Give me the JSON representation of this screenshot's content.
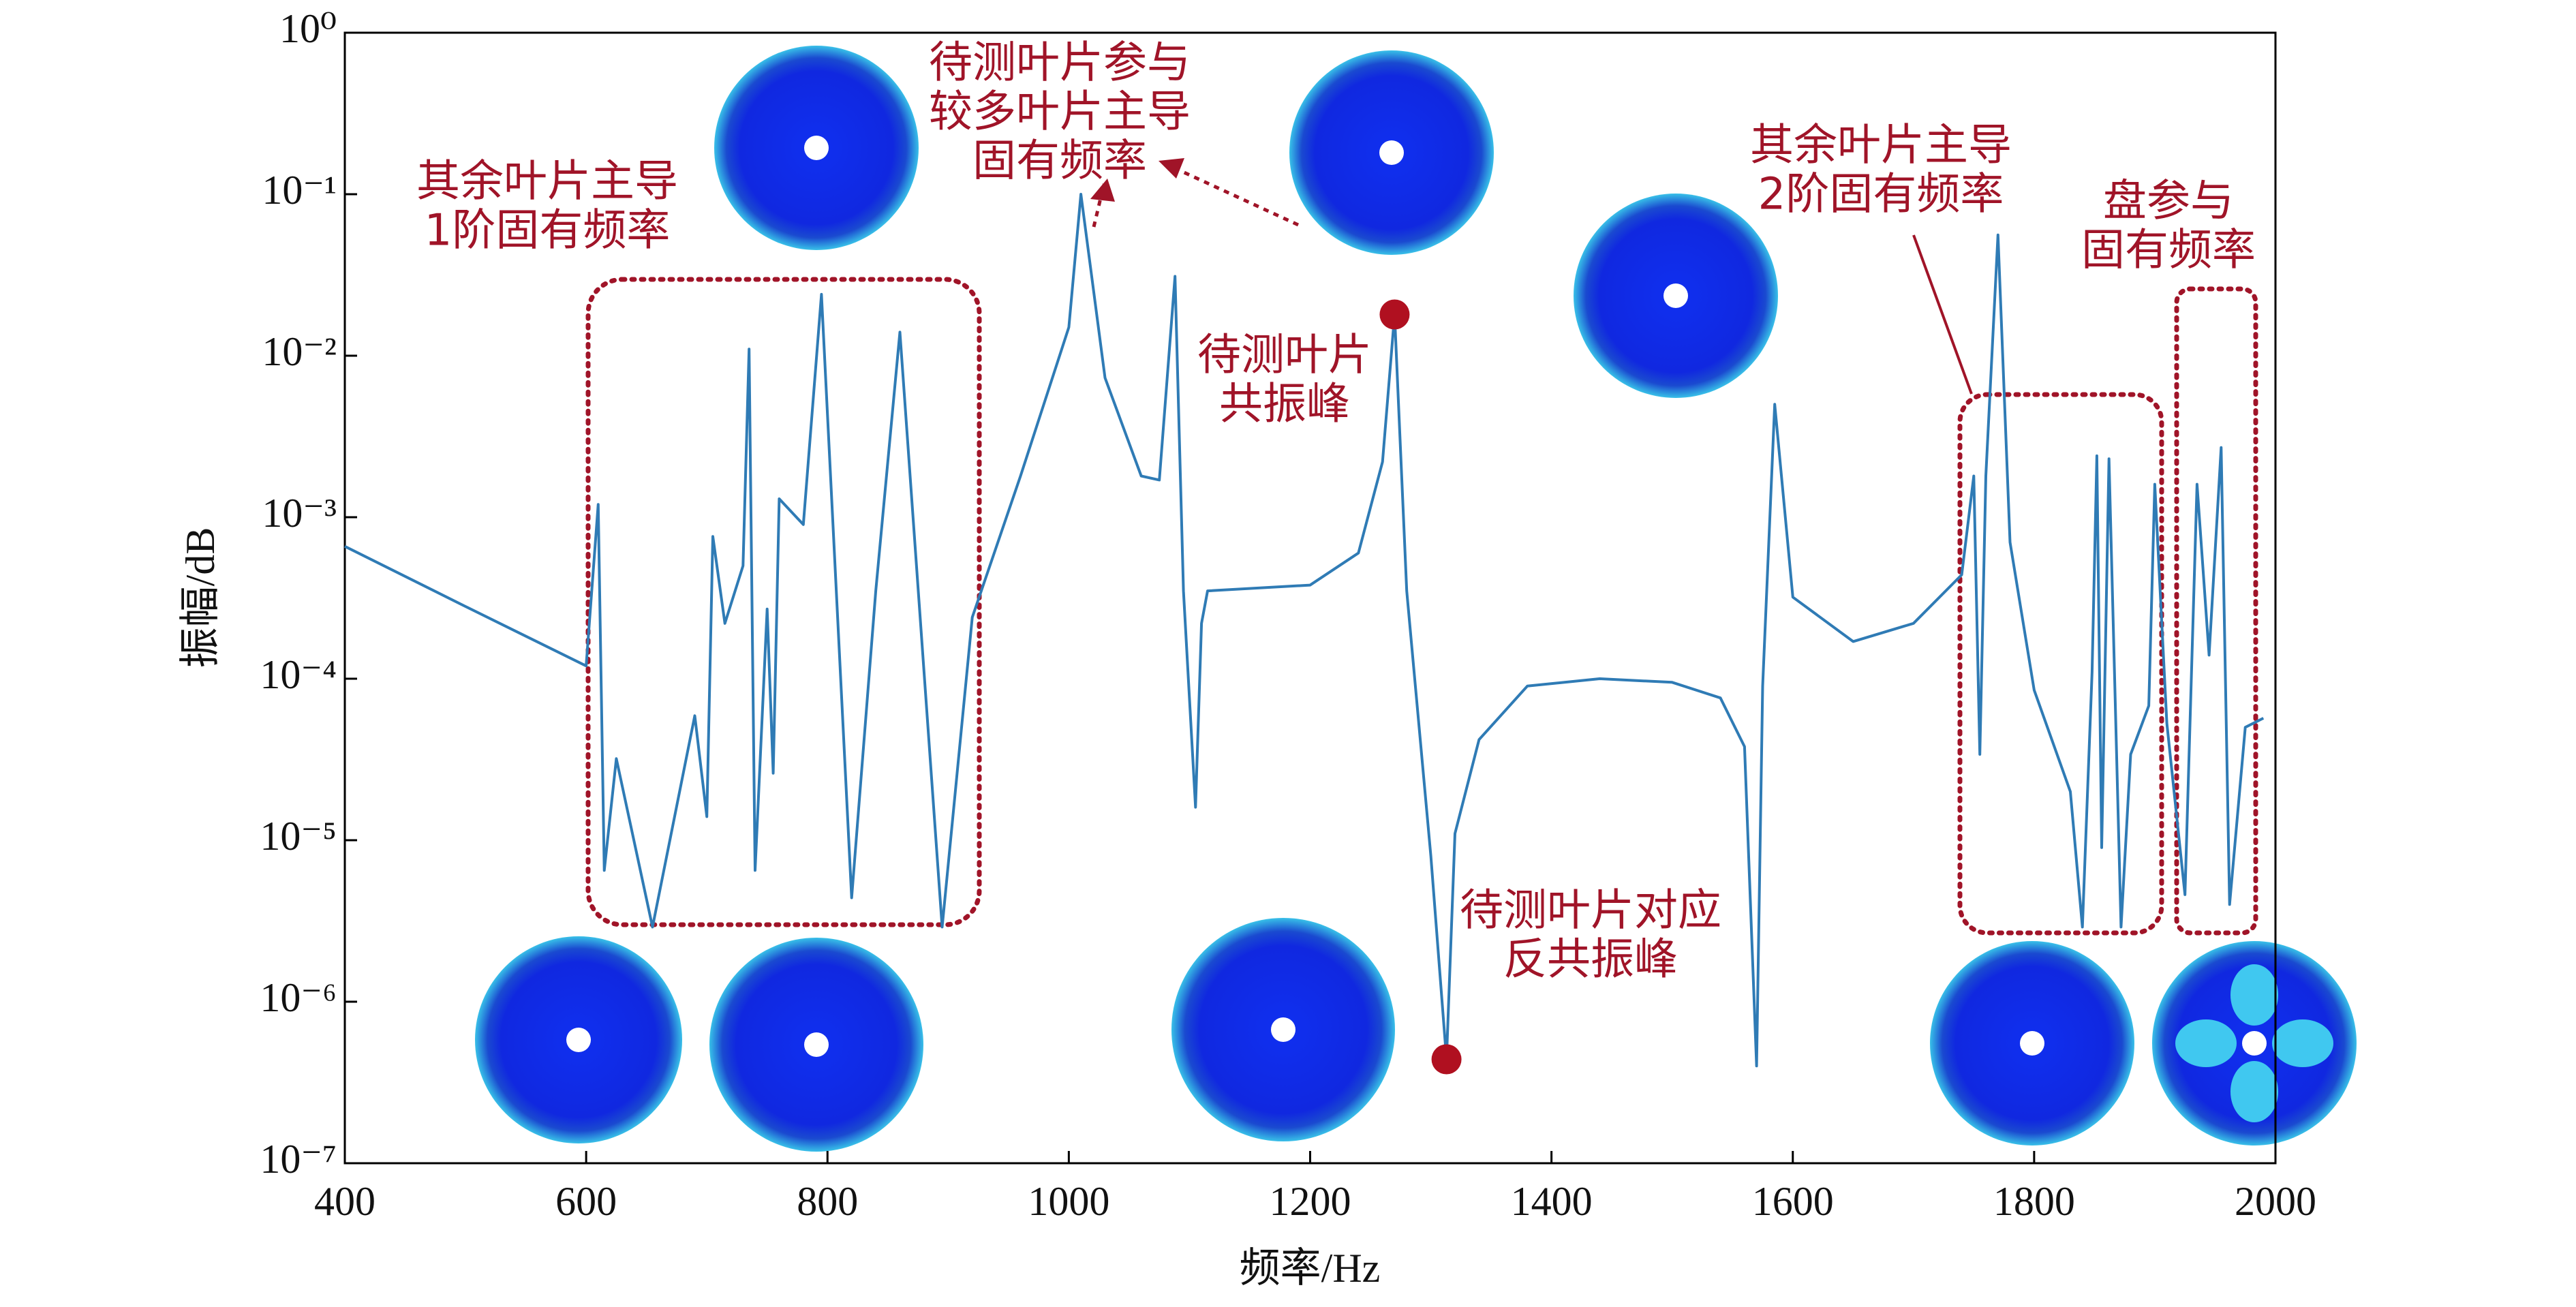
{
  "chart_data": {
    "type": "line",
    "xlabel": "频率/Hz",
    "ylabel": "振幅/dB",
    "ylog": true,
    "grid": false,
    "color": "#2f7bb5",
    "xlim": [
      400,
      2000
    ],
    "ylim": [
      1e-07,
      1
    ],
    "xticks": [
      400,
      600,
      800,
      1000,
      1200,
      1400,
      1600,
      1800,
      2000
    ],
    "yticks": [
      {
        "value": 1,
        "label": "10⁰"
      },
      {
        "value": 0.1,
        "label": "10⁻¹"
      },
      {
        "value": 0.01,
        "label": "10⁻²"
      },
      {
        "value": 0.001,
        "label": "10⁻³"
      },
      {
        "value": 0.0001,
        "label": "10⁻⁴"
      },
      {
        "value": 1e-05,
        "label": "10⁻⁵"
      },
      {
        "value": 1e-06,
        "label": "10⁻⁶"
      },
      {
        "value": 1e-07,
        "label": "10⁻⁷"
      }
    ],
    "x": [
      400,
      500,
      600,
      610,
      615,
      625,
      655,
      690,
      700,
      705,
      715,
      730,
      735,
      740,
      750,
      755,
      760,
      780,
      795,
      820,
      840,
      860,
      895,
      920,
      960,
      1000,
      1010,
      1030,
      1060,
      1075,
      1088,
      1095,
      1105,
      1110,
      1115,
      1200,
      1240,
      1260,
      1270,
      1280,
      1300,
      1313,
      1320,
      1340,
      1380,
      1440,
      1500,
      1540,
      1560,
      1570,
      1575,
      1585,
      1600,
      1650,
      1700,
      1740,
      1750,
      1755,
      1760,
      1770,
      1780,
      1800,
      1830,
      1840,
      1848,
      1852,
      1856,
      1862,
      1872,
      1880,
      1895,
      1900,
      1910,
      1925,
      1935,
      1945,
      1955,
      1962,
      1975,
      1990
    ],
    "values": [
      0.00066,
      0.00028,
      0.00012,
      0.0012,
      6.5e-06,
      3.2e-05,
      2.9e-06,
      5.9e-05,
      1.4e-05,
      0.00076,
      0.00022,
      0.0005,
      0.011,
      6.5e-06,
      0.00027,
      2.6e-05,
      0.0013,
      0.0009,
      0.024,
      4.4e-06,
      0.00035,
      0.014,
      2.9e-06,
      0.00024,
      0.0018,
      0.015,
      0.1,
      0.0073,
      0.0018,
      0.0017,
      0.031,
      0.00035,
      1.6e-05,
      0.00022,
      0.00035,
      0.00038,
      0.0006,
      0.0022,
      0.018,
      0.00035,
      8e-06,
      4.4e-07,
      1.1e-05,
      4.2e-05,
      9e-05,
      0.0001,
      9.5e-05,
      7.6e-05,
      3.8e-05,
      4e-07,
      9e-05,
      0.005,
      0.00032,
      0.00017,
      0.00022,
      0.00044,
      0.0018,
      3.4e-05,
      0.0018,
      0.056,
      0.0007,
      8.5e-05,
      2e-05,
      2.9e-06,
      0.00011,
      0.0024,
      9e-06,
      0.0023,
      2.9e-06,
      3.4e-05,
      6.8e-05,
      0.0016,
      5.3e-05,
      4.6e-06,
      0.0016,
      0.00014,
      0.0027,
      4e-06,
      5e-05,
      5.7e-05
    ],
    "markers": [
      {
        "x": 1270,
        "y": 0.018
      },
      {
        "x": 1313,
        "y": 4.4e-07
      }
    ],
    "marker_color": "#b01020",
    "annotation_color": "#a01428",
    "annotations": [
      {
        "lines": [
          "其余叶片主导",
          "1阶固有频率"
        ]
      },
      {
        "lines": [
          "待测叶片参与",
          "较多叶片主导",
          "固有频率"
        ]
      },
      {
        "lines": [
          "待测叶片",
          "共振峰"
        ]
      },
      {
        "lines": [
          "其余叶片主导",
          "2阶固有频率"
        ]
      },
      {
        "lines": [
          "盘参与",
          "固有频率"
        ]
      },
      {
        "lines": [
          "待测叶片对应",
          "反共振峰"
        ]
      }
    ]
  }
}
